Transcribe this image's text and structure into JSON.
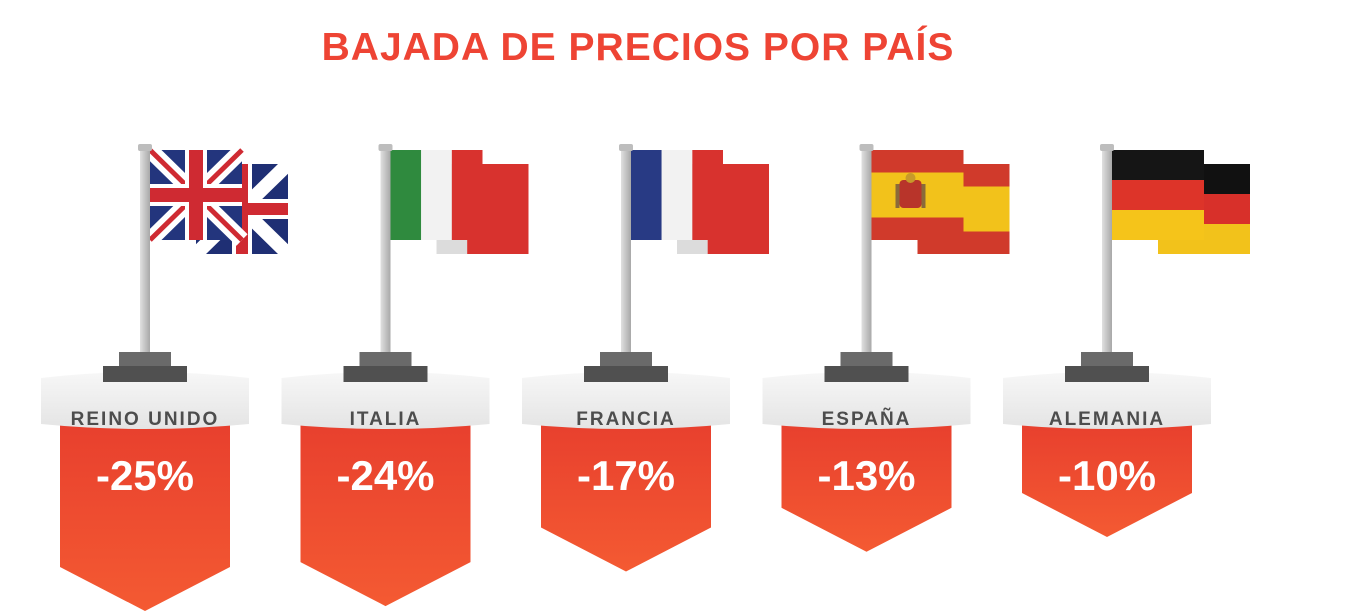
{
  "title": "BAJADA DE PRECIOS POR PAÍS",
  "chart_data": {
    "type": "bar",
    "title": "BAJADA DE PRECIOS POR PAÍS",
    "xlabel": "",
    "ylabel": "",
    "categories": [
      "REINO UNIDO",
      "ITALIA",
      "FRANCIA",
      "ESPAÑA",
      "ALEMANIA"
    ],
    "values": [
      -25,
      -24,
      -17,
      -13,
      -10
    ],
    "value_labels": [
      "-25%",
      "-24%",
      "-17%",
      "-13%",
      "-10%"
    ],
    "unit": "%",
    "flags": [
      "uk-flag-icon",
      "italy-flag-icon",
      "france-flag-icon",
      "spain-flag-icon",
      "germany-flag-icon"
    ],
    "colors": {
      "title": "#ee4434",
      "banner": "#f04a31",
      "label": "#4d4d4d",
      "pedestal": "#efefef",
      "pole": "#c9c9c9",
      "base": "#5a5a5a"
    }
  }
}
